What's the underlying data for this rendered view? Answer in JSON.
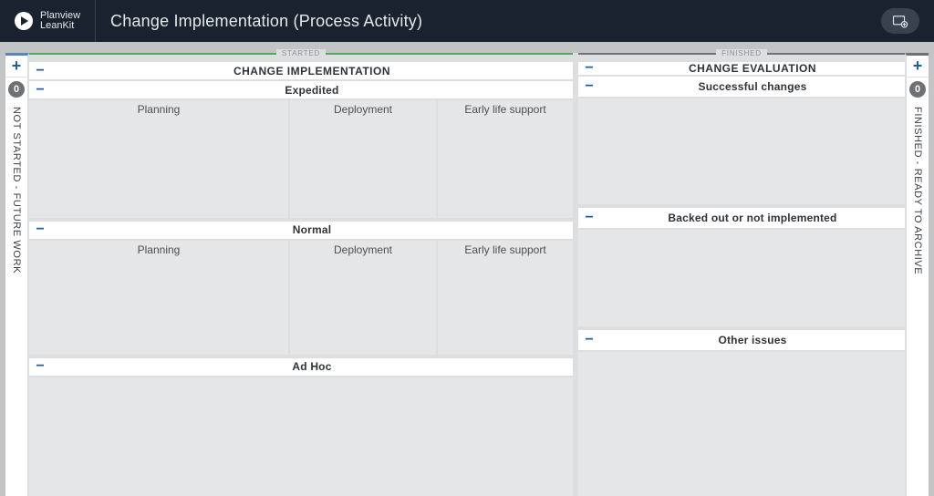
{
  "header": {
    "brand_top": "Planview",
    "brand_bottom": "LeanKit",
    "title": "Change Implementation (Process Activity)"
  },
  "rails": {
    "left": {
      "count": "0",
      "label": "NOT STARTED - FUTURE WORK",
      "top_color": "#5a86b8"
    },
    "right": {
      "count": "0",
      "label": "FINISHED - READY TO ARCHIVE",
      "top_color": "#6d7277"
    }
  },
  "status_tabs": {
    "started": {
      "label": "STARTED",
      "color": "#5aa65a"
    },
    "finished": {
      "label": "FINISHED",
      "color": "#6d7277"
    }
  },
  "impl": {
    "title": "CHANGE IMPLEMENTATION",
    "expedited": {
      "title": "Expedited",
      "cols": [
        "Planning",
        "Deployment",
        "Early life support"
      ],
      "body_h": 110
    },
    "normal": {
      "title": "Normal",
      "cols": [
        "Planning",
        "Deployment",
        "Early life support"
      ],
      "body_h": 106
    },
    "adhoc": {
      "title": "Ad Hoc",
      "body_h": 150
    }
  },
  "eval": {
    "title": "CHANGE EVALUATION",
    "sections": [
      {
        "title": "Successful changes",
        "body_h": 116
      },
      {
        "title": "Backed out or not implemented",
        "body_h": 106
      },
      {
        "title": "Other issues",
        "body_h": 180
      }
    ]
  },
  "col_widths": {
    "planning": 286,
    "deployment": 162,
    "els": 148
  }
}
